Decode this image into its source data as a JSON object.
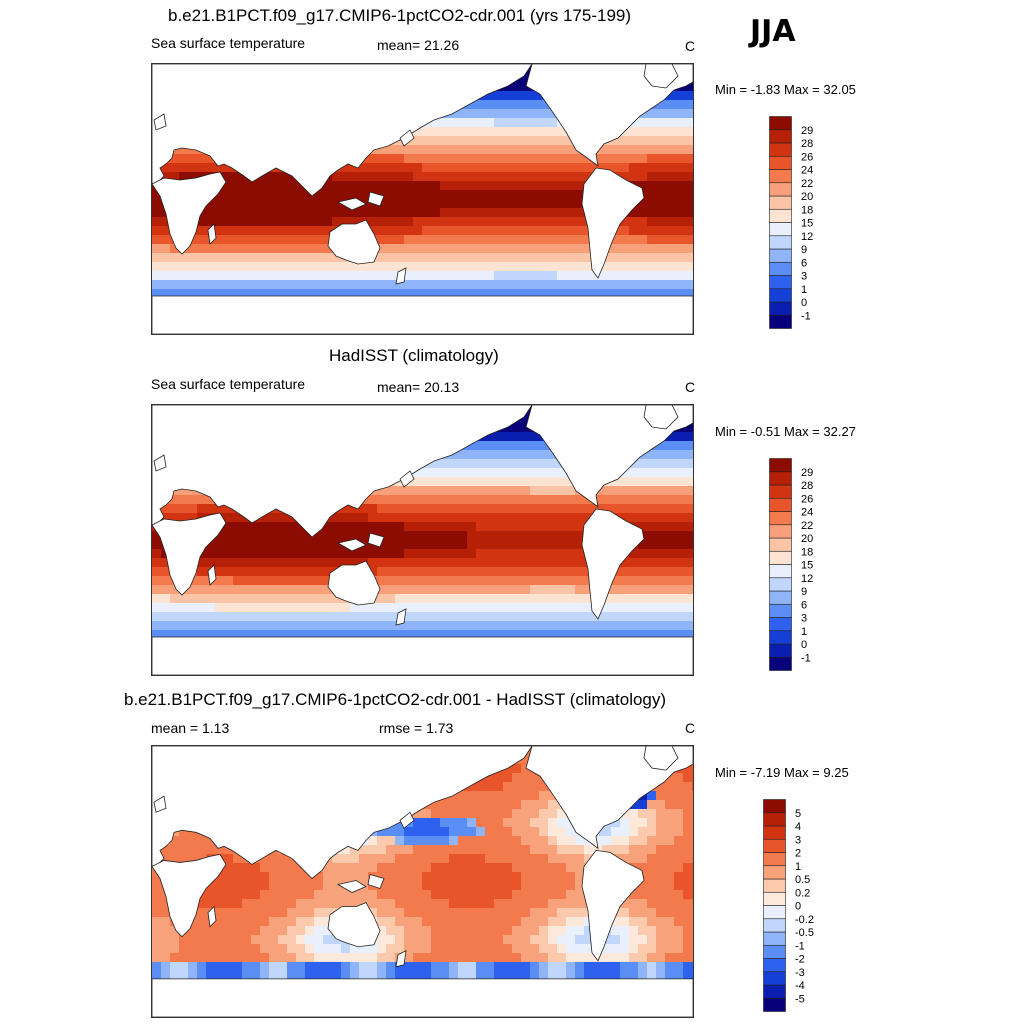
{
  "season": "JJA",
  "colors": {
    "sst": [
      "#08007a",
      "#0a1fb0",
      "#1540d8",
      "#2e62ee",
      "#5b8ef5",
      "#8fb4f8",
      "#c0d6fb",
      "#e9f0fd",
      "#fde3d2",
      "#fbc4a6",
      "#f8a07a",
      "#f27a4c",
      "#e8552b",
      "#d23412",
      "#b52007",
      "#8c0c02"
    ],
    "diff": [
      "#08007a",
      "#0a1fb0",
      "#1540d8",
      "#2e62ee",
      "#5b8ef5",
      "#8fb4f8",
      "#c0d6fb",
      "#e9f0fd",
      "#fde9dc",
      "#fbc9ab",
      "#f8a27c",
      "#f27a4c",
      "#e8552b",
      "#d23412",
      "#b52007",
      "#8c0c02"
    ]
  },
  "panels": [
    {
      "title": "b.e21.B1PCT.f09_g17.CMIP6-1pctCO2-cdr.001 (yrs 175-199)",
      "left_label": "Sea surface temperature",
      "center_label": "mean=  21.26",
      "units": "C",
      "minmax": "Min =  -1.83 Max =  32.05",
      "colorbar_labels": [
        "29",
        "28",
        "26",
        "24",
        "22",
        "20",
        "18",
        "15",
        "12",
        "9",
        "6",
        "3",
        "1",
        "0",
        "-1"
      ]
    },
    {
      "title": "HadISST (climatology)",
      "left_label": "Sea surface temperature",
      "center_label": "mean=  20.13",
      "units": "C",
      "minmax": "Min =  -0.51 Max =  32.27",
      "colorbar_labels": [
        "29",
        "28",
        "26",
        "24",
        "22",
        "20",
        "18",
        "15",
        "12",
        "9",
        "6",
        "3",
        "1",
        "0",
        "-1"
      ]
    },
    {
      "title": "b.e21.B1PCT.f09_g17.CMIP6-1pctCO2-cdr.001 - HadISST (climatology)",
      "left_label": "mean =   1.13",
      "center_label": "rmse =   1.73",
      "units": "C",
      "minmax": "Min =  -7.19 Max =   9.25",
      "colorbar_labels": [
        "5",
        "4",
        "3",
        "2",
        "1",
        "0.5",
        "0.2",
        "0",
        "-0.2",
        "-0.5",
        "-1",
        "-2",
        "-3",
        "-4",
        "-5"
      ]
    }
  ],
  "chart_data": [
    {
      "type": "heatmap",
      "title": "b.e21.B1PCT.f09_g17.CMIP6-1pctCO2-cdr.001 (yrs 175-199)",
      "variable": "Sea surface temperature",
      "units": "C",
      "mean": 21.26,
      "min": -1.83,
      "max": 32.05,
      "contour_levels": [
        -1,
        0,
        1,
        3,
        6,
        9,
        12,
        15,
        18,
        20,
        22,
        24,
        26,
        28,
        29
      ]
    },
    {
      "type": "heatmap",
      "title": "HadISST (climatology)",
      "variable": "Sea surface temperature",
      "units": "C",
      "mean": 20.13,
      "min": -0.51,
      "max": 32.27,
      "contour_levels": [
        -1,
        0,
        1,
        3,
        6,
        9,
        12,
        15,
        18,
        20,
        22,
        24,
        26,
        28,
        29
      ]
    },
    {
      "type": "heatmap",
      "title": "b.e21.B1PCT.f09_g17.CMIP6-1pctCO2-cdr.001 - HadISST (climatology)",
      "units": "C",
      "mean": 1.13,
      "rmse": 1.73,
      "min": -7.19,
      "max": 9.25,
      "contour_levels": [
        -5,
        -4,
        -3,
        -2,
        -1,
        -0.5,
        -0.2,
        0,
        0.2,
        0.5,
        1,
        2,
        3,
        4,
        5
      ]
    }
  ]
}
